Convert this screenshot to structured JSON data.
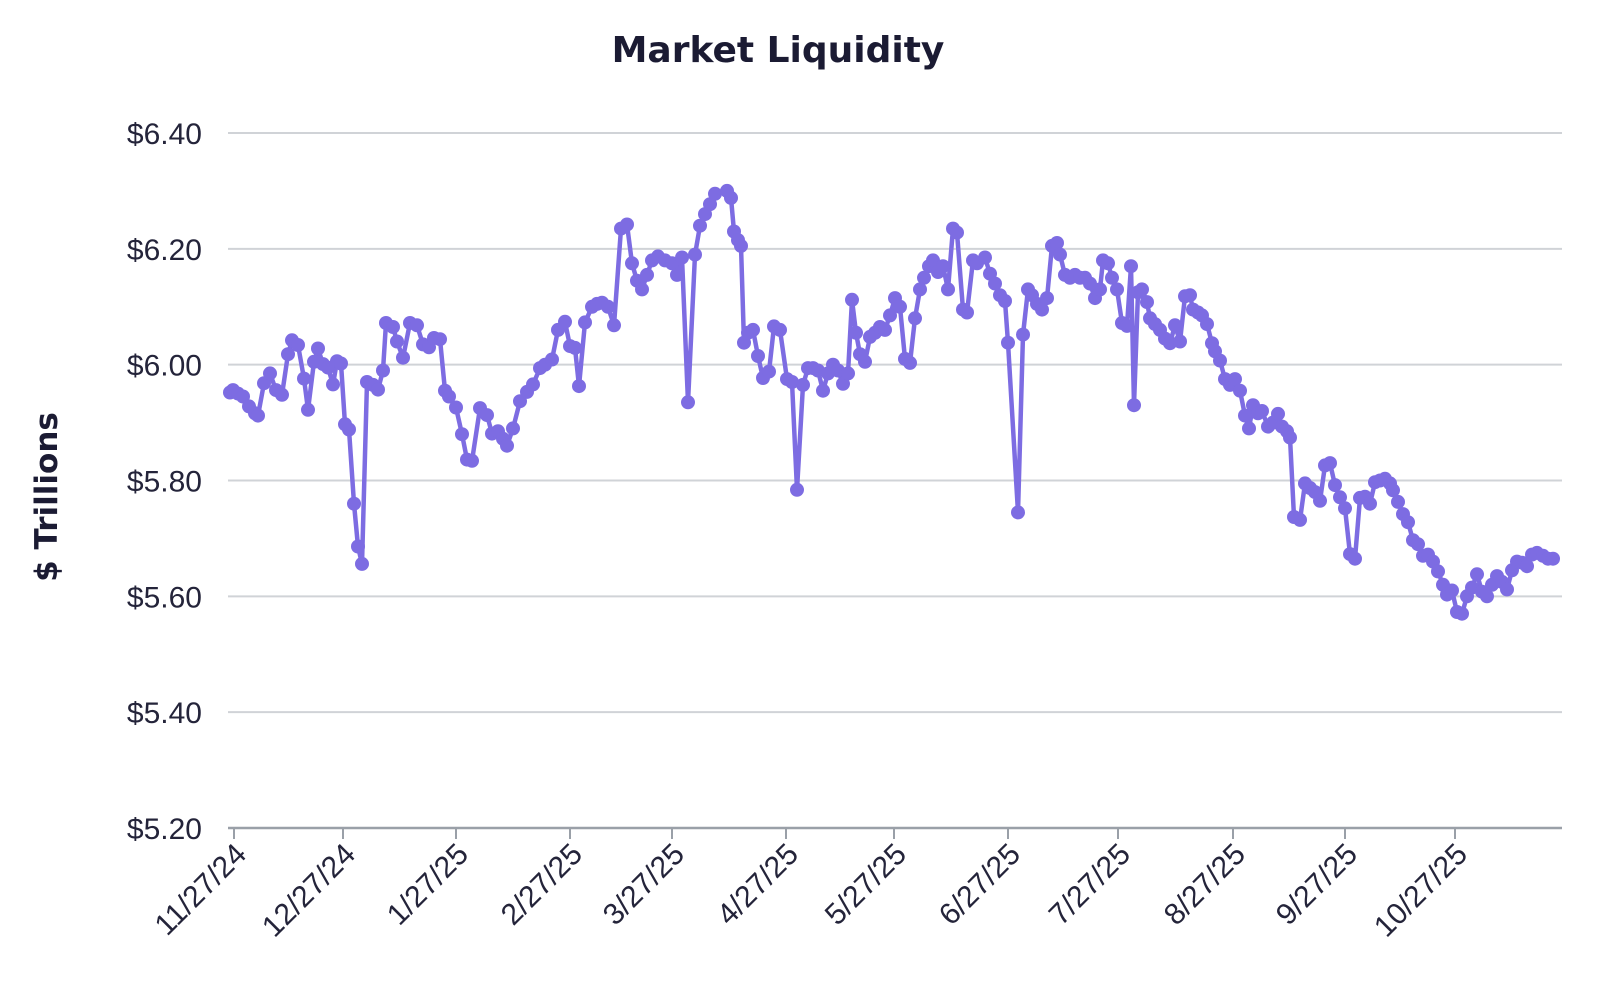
{
  "chart_data": {
    "type": "line",
    "title": "Market Liquidity",
    "ylabel": "$ Trillions",
    "xlabel": "",
    "ylim": [
      5.2,
      6.4
    ],
    "grid": true,
    "legend": "none",
    "line_color": "#7d6ce2",
    "grid_color": "#d0d3d7",
    "axis_color": "#9aa0a8",
    "tick_label_color": "#24243a",
    "title_color": "#1b1b33",
    "y_tick_labels": [
      "$6.40",
      "$6.20",
      "$6.00",
      "$5.80",
      "$5.60",
      "$5.40",
      "$5.20"
    ],
    "y_tick_values": [
      6.4,
      6.2,
      6.0,
      5.8,
      5.6,
      5.4,
      5.2
    ],
    "x_tick_labels": [
      "11/27/24",
      "12/27/24",
      "1/27/25",
      "2/27/25",
      "3/27/25",
      "4/27/25",
      "5/27/25",
      "6/27/25",
      "7/27/25",
      "8/27/25",
      "9/27/25",
      "10/27/25"
    ],
    "x_tick_pos": [
      234,
      343,
      456,
      570,
      672,
      786,
      894,
      1008,
      1118,
      1233,
      1345,
      1455
    ],
    "units": "USD trillions",
    "points": [
      [
        230,
        5.952
      ],
      [
        233,
        5.956
      ],
      [
        238,
        5.95
      ],
      [
        243,
        5.945
      ],
      [
        249,
        5.928
      ],
      [
        255,
        5.916
      ],
      [
        258,
        5.912
      ],
      [
        264,
        5.968
      ],
      [
        270,
        5.985
      ],
      [
        276,
        5.956
      ],
      [
        282,
        5.948
      ],
      [
        288,
        6.018
      ],
      [
        292,
        6.042
      ],
      [
        298,
        6.034
      ],
      [
        304,
        5.976
      ],
      [
        308,
        5.922
      ],
      [
        314,
        6.005
      ],
      [
        318,
        6.028
      ],
      [
        323,
        6.001
      ],
      [
        328,
        5.995
      ],
      [
        333,
        5.966
      ],
      [
        337,
        6.006
      ],
      [
        341,
        6.002
      ],
      [
        345,
        5.897
      ],
      [
        349,
        5.888
      ],
      [
        354,
        5.76
      ],
      [
        358,
        5.686
      ],
      [
        362,
        5.656
      ],
      [
        367,
        5.97
      ],
      [
        373,
        5.965
      ],
      [
        378,
        5.957
      ],
      [
        383,
        5.99
      ],
      [
        386,
        6.072
      ],
      [
        393,
        6.065
      ],
      [
        397,
        6.04
      ],
      [
        403,
        6.012
      ],
      [
        410,
        6.072
      ],
      [
        417,
        6.068
      ],
      [
        423,
        6.035
      ],
      [
        429,
        6.03
      ],
      [
        434,
        6.046
      ],
      [
        440,
        6.044
      ],
      [
        445,
        5.955
      ],
      [
        449,
        5.945
      ],
      [
        456,
        5.926
      ],
      [
        462,
        5.88
      ],
      [
        467,
        5.836
      ],
      [
        472,
        5.834
      ],
      [
        480,
        5.925
      ],
      [
        487,
        5.913
      ],
      [
        492,
        5.881
      ],
      [
        498,
        5.885
      ],
      [
        503,
        5.872
      ],
      [
        507,
        5.86
      ],
      [
        513,
        5.89
      ],
      [
        520,
        5.937
      ],
      [
        527,
        5.953
      ],
      [
        533,
        5.966
      ],
      [
        540,
        5.994
      ],
      [
        545,
        6.0
      ],
      [
        552,
        6.009
      ],
      [
        558,
        6.06
      ],
      [
        565,
        6.074
      ],
      [
        570,
        6.032
      ],
      [
        575,
        6.029
      ],
      [
        579,
        5.963
      ],
      [
        585,
        6.073
      ],
      [
        592,
        6.1
      ],
      [
        597,
        6.105
      ],
      [
        602,
        6.107
      ],
      [
        608,
        6.1
      ],
      [
        614,
        6.068
      ],
      [
        621,
        6.235
      ],
      [
        627,
        6.242
      ],
      [
        632,
        6.175
      ],
      [
        637,
        6.145
      ],
      [
        642,
        6.13
      ],
      [
        647,
        6.155
      ],
      [
        652,
        6.18
      ],
      [
        658,
        6.187
      ],
      [
        665,
        6.18
      ],
      [
        672,
        6.175
      ],
      [
        677,
        6.155
      ],
      [
        682,
        6.185
      ],
      [
        688,
        5.935
      ],
      [
        695,
        6.19
      ],
      [
        700,
        6.24
      ],
      [
        705,
        6.26
      ],
      [
        710,
        6.277
      ],
      [
        715,
        6.295
      ],
      [
        727,
        6.3
      ],
      [
        731,
        6.288
      ],
      [
        734,
        6.23
      ],
      [
        738,
        6.215
      ],
      [
        741,
        6.205
      ],
      [
        744,
        6.038
      ],
      [
        748,
        6.055
      ],
      [
        753,
        6.06
      ],
      [
        758,
        6.015
      ],
      [
        763,
        5.977
      ],
      [
        769,
        5.988
      ],
      [
        774,
        6.066
      ],
      [
        780,
        6.06
      ],
      [
        787,
        5.975
      ],
      [
        792,
        5.97
      ],
      [
        797,
        5.784
      ],
      [
        803,
        5.965
      ],
      [
        808,
        5.994
      ],
      [
        813,
        5.994
      ],
      [
        818,
        5.99
      ],
      [
        823,
        5.955
      ],
      [
        828,
        5.985
      ],
      [
        833,
        6.0
      ],
      [
        838,
        5.99
      ],
      [
        843,
        5.967
      ],
      [
        848,
        5.985
      ],
      [
        852,
        6.112
      ],
      [
        856,
        6.055
      ],
      [
        860,
        6.018
      ],
      [
        865,
        6.005
      ],
      [
        870,
        6.048
      ],
      [
        875,
        6.055
      ],
      [
        880,
        6.065
      ],
      [
        885,
        6.06
      ],
      [
        890,
        6.085
      ],
      [
        895,
        6.115
      ],
      [
        900,
        6.1
      ],
      [
        905,
        6.01
      ],
      [
        910,
        6.003
      ],
      [
        915,
        6.08
      ],
      [
        920,
        6.13
      ],
      [
        924,
        6.15
      ],
      [
        929,
        6.17
      ],
      [
        933,
        6.18
      ],
      [
        938,
        6.16
      ],
      [
        943,
        6.17
      ],
      [
        948,
        6.13
      ],
      [
        953,
        6.235
      ],
      [
        957,
        6.228
      ],
      [
        963,
        6.095
      ],
      [
        967,
        6.09
      ],
      [
        973,
        6.18
      ],
      [
        977,
        6.175
      ],
      [
        985,
        6.185
      ],
      [
        990,
        6.157
      ],
      [
        995,
        6.14
      ],
      [
        1000,
        6.12
      ],
      [
        1005,
        6.11
      ],
      [
        1008,
        6.038
      ],
      [
        1018,
        5.745
      ],
      [
        1023,
        6.052
      ],
      [
        1028,
        6.13
      ],
      [
        1032,
        6.12
      ],
      [
        1037,
        6.105
      ],
      [
        1042,
        6.095
      ],
      [
        1047,
        6.115
      ],
      [
        1052,
        6.205
      ],
      [
        1057,
        6.21
      ],
      [
        1060,
        6.19
      ],
      [
        1065,
        6.155
      ],
      [
        1070,
        6.15
      ],
      [
        1075,
        6.155
      ],
      [
        1080,
        6.15
      ],
      [
        1085,
        6.15
      ],
      [
        1090,
        6.14
      ],
      [
        1095,
        6.115
      ],
      [
        1100,
        6.13
      ],
      [
        1103,
        6.18
      ],
      [
        1108,
        6.175
      ],
      [
        1112,
        6.15
      ],
      [
        1117,
        6.13
      ],
      [
        1122,
        6.072
      ],
      [
        1127,
        6.067
      ],
      [
        1131,
        6.17
      ],
      [
        1134,
        5.93
      ],
      [
        1138,
        6.125
      ],
      [
        1142,
        6.13
      ],
      [
        1147,
        6.108
      ],
      [
        1150,
        6.08
      ],
      [
        1155,
        6.07
      ],
      [
        1160,
        6.06
      ],
      [
        1165,
        6.045
      ],
      [
        1170,
        6.037
      ],
      [
        1175,
        6.068
      ],
      [
        1180,
        6.04
      ],
      [
        1185,
        6.118
      ],
      [
        1190,
        6.12
      ],
      [
        1193,
        6.095
      ],
      [
        1198,
        6.09
      ],
      [
        1202,
        6.085
      ],
      [
        1207,
        6.07
      ],
      [
        1212,
        6.037
      ],
      [
        1215,
        6.023
      ],
      [
        1220,
        6.007
      ],
      [
        1225,
        5.975
      ],
      [
        1230,
        5.965
      ],
      [
        1235,
        5.975
      ],
      [
        1240,
        5.955
      ],
      [
        1245,
        5.912
      ],
      [
        1249,
        5.89
      ],
      [
        1253,
        5.93
      ],
      [
        1258,
        5.916
      ],
      [
        1262,
        5.92
      ],
      [
        1268,
        5.893
      ],
      [
        1273,
        5.9
      ],
      [
        1278,
        5.915
      ],
      [
        1282,
        5.893
      ],
      [
        1287,
        5.885
      ],
      [
        1290,
        5.874
      ],
      [
        1294,
        5.737
      ],
      [
        1300,
        5.732
      ],
      [
        1305,
        5.795
      ],
      [
        1310,
        5.787
      ],
      [
        1315,
        5.78
      ],
      [
        1320,
        5.765
      ],
      [
        1325,
        5.826
      ],
      [
        1330,
        5.83
      ],
      [
        1335,
        5.792
      ],
      [
        1340,
        5.771
      ],
      [
        1345,
        5.752
      ],
      [
        1350,
        5.673
      ],
      [
        1355,
        5.665
      ],
      [
        1360,
        5.77
      ],
      [
        1365,
        5.772
      ],
      [
        1370,
        5.76
      ],
      [
        1375,
        5.797
      ],
      [
        1380,
        5.8
      ],
      [
        1385,
        5.803
      ],
      [
        1390,
        5.795
      ],
      [
        1393,
        5.783
      ],
      [
        1398,
        5.763
      ],
      [
        1403,
        5.742
      ],
      [
        1408,
        5.728
      ],
      [
        1413,
        5.697
      ],
      [
        1418,
        5.69
      ],
      [
        1423,
        5.67
      ],
      [
        1428,
        5.672
      ],
      [
        1433,
        5.66
      ],
      [
        1438,
        5.643
      ],
      [
        1443,
        5.62
      ],
      [
        1447,
        5.603
      ],
      [
        1452,
        5.61
      ],
      [
        1457,
        5.573
      ],
      [
        1462,
        5.57
      ],
      [
        1467,
        5.6
      ],
      [
        1472,
        5.615
      ],
      [
        1477,
        5.638
      ],
      [
        1482,
        5.608
      ],
      [
        1487,
        5.6
      ],
      [
        1492,
        5.62
      ],
      [
        1497,
        5.635
      ],
      [
        1502,
        5.625
      ],
      [
        1507,
        5.612
      ],
      [
        1512,
        5.645
      ],
      [
        1517,
        5.66
      ],
      [
        1522,
        5.658
      ],
      [
        1527,
        5.652
      ],
      [
        1532,
        5.672
      ],
      [
        1537,
        5.675
      ],
      [
        1543,
        5.67
      ],
      [
        1548,
        5.665
      ],
      [
        1553,
        5.665
      ]
    ]
  }
}
